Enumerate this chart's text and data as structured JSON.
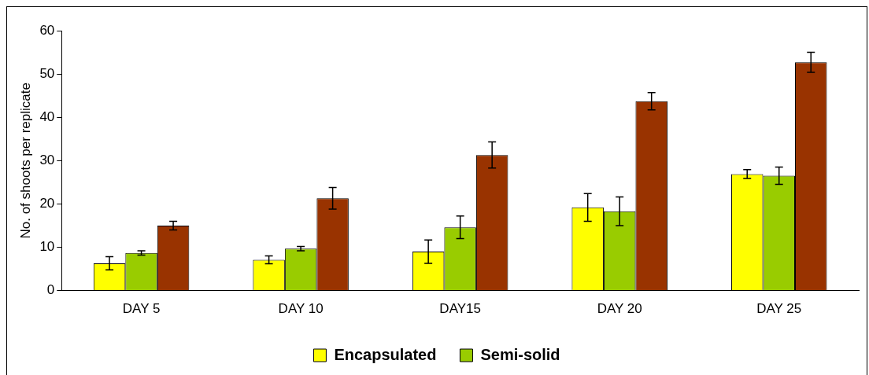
{
  "chart_data": {
    "type": "bar",
    "ylabel": "No. of shoots per replicate",
    "categories": [
      "DAY 5",
      "DAY 10",
      "DAY15",
      "DAY 20",
      "DAY 25"
    ],
    "series": [
      {
        "name": "Encapsulated",
        "color": "#ffff00",
        "values": [
          6.3,
          7.1,
          9.0,
          19.2,
          26.9
        ],
        "errors": [
          1.5,
          0.9,
          2.7,
          3.2,
          1.0
        ]
      },
      {
        "name": "Semi-solid",
        "color": "#99cc00",
        "values": [
          8.7,
          9.7,
          14.6,
          18.3,
          26.5
        ],
        "errors": [
          0.5,
          0.5,
          2.6,
          3.3,
          2.0
        ]
      },
      {
        "color": "#993300",
        "values": [
          15.0,
          21.3,
          31.3,
          43.7,
          52.7
        ],
        "errors": [
          1.0,
          2.5,
          3.0,
          2.0,
          2.3
        ]
      }
    ],
    "ylim": [
      0,
      60
    ],
    "yticks": [
      0,
      10,
      20,
      30,
      40,
      50,
      60
    ],
    "grid": false,
    "legend": "bottom"
  }
}
